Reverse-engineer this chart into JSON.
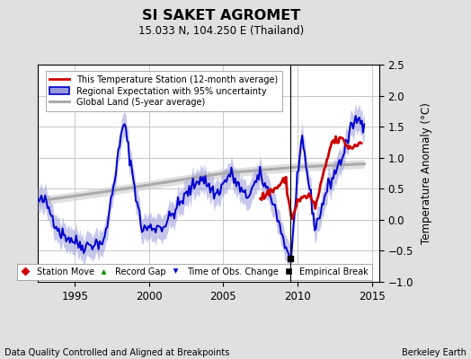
{
  "title": "SI SAKET AGROMET",
  "subtitle": "15.033 N, 104.250 E (Thailand)",
  "ylabel": "Temperature Anomaly (°C)",
  "xlabel_left": "Data Quality Controlled and Aligned at Breakpoints",
  "xlabel_right": "Berkeley Earth",
  "ylim": [
    -1.0,
    2.5
  ],
  "xlim": [
    1992.5,
    2015.5
  ],
  "yticks": [
    -1.0,
    -0.5,
    0.0,
    0.5,
    1.0,
    1.5,
    2.0,
    2.5
  ],
  "xticks": [
    1995,
    2000,
    2005,
    2010,
    2015
  ],
  "vline_x": 2009.5,
  "empirical_break_x": 2009.5,
  "empirical_break_y": -0.62,
  "bg_color": "#e0e0e0",
  "plot_bg_color": "#ffffff",
  "grid_color": "#c8c8c8",
  "red_line_color": "#cc0000",
  "blue_line_color": "#0000cc",
  "blue_fill_color": "#9999dd",
  "gray_line_color": "#aaaaaa",
  "gray_fill_color": "#cccccc",
  "legend1_items": [
    {
      "label": "This Temperature Station (12-month average)",
      "color": "#cc0000",
      "lw": 2.0
    },
    {
      "label": "Regional Expectation with 95% uncertainty",
      "color": "#0000cc",
      "lw": 2.0
    },
    {
      "label": "Global Land (5-year average)",
      "color": "#aaaaaa",
      "lw": 2.5
    }
  ],
  "legend2_items": [
    {
      "label": "Station Move",
      "color": "#cc0000",
      "marker": "D"
    },
    {
      "label": "Record Gap",
      "color": "#008800",
      "marker": "^"
    },
    {
      "label": "Time of Obs. Change",
      "color": "#0000cc",
      "marker": "v"
    },
    {
      "label": "Empirical Break",
      "color": "#000000",
      "marker": "s"
    }
  ]
}
